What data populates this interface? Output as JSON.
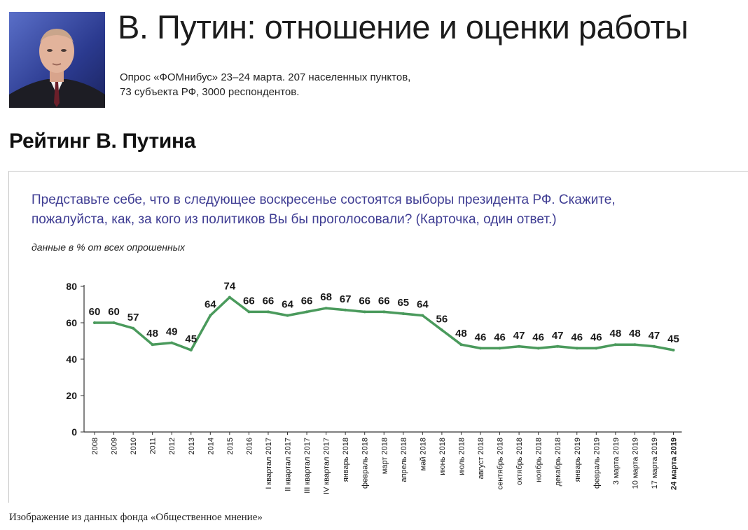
{
  "header": {
    "title": "В. Путин: отношение и оценки работы",
    "subtitle_line1": "Опрос «ФОМнибус» 23–24 марта. 207 населенных пунктов,",
    "subtitle_line2": "73 субъекта РФ, 3000 респондентов."
  },
  "section_title": "Рейтинг В. Путина",
  "chart_panel": {
    "question_line1": "Представьте себе, что в следующее воскресенье состоятся выборы президента РФ. Скажите,",
    "question_line2": "пожалуйста, как, за кого из политиков Вы бы проголосовали?  (Карточка, один ответ.)",
    "unit_note": "данные в % от всех опрошенных"
  },
  "caption": "Изображение из данных фонда «Общественное мнение»",
  "chart_data": {
    "type": "line",
    "categories": [
      "2008",
      "2009",
      "2010",
      "2011",
      "2012",
      "2013",
      "2014",
      "2015",
      "2016",
      "I квартал 2017",
      "II квартал 2017",
      "III квартал 2017",
      "IV квартал 2017",
      "январь 2018",
      "февраль 2018",
      "март 2018",
      "апрель 2018",
      "май 2018",
      "июнь 2018",
      "июль 2018",
      "август 2018",
      "сентябрь 2018",
      "октябрь 2018",
      "ноябрь 2018",
      "декабрь 2018",
      "январь 2019",
      "февраль 2019",
      "3 марта 2019",
      "10 марта 2019",
      "17 марта 2019",
      "24 марта 2019"
    ],
    "values": [
      60,
      60,
      57,
      48,
      49,
      45,
      64,
      74,
      66,
      66,
      64,
      66,
      68,
      67,
      66,
      66,
      65,
      64,
      56,
      48,
      46,
      46,
      47,
      46,
      47,
      46,
      46,
      48,
      48,
      47,
      45
    ],
    "ylim": [
      0,
      80
    ],
    "yticks": [
      0,
      20,
      40,
      60,
      80
    ],
    "bold_category": "24 марта 2019",
    "line_color": "#4a9a5c",
    "grid": false
  }
}
